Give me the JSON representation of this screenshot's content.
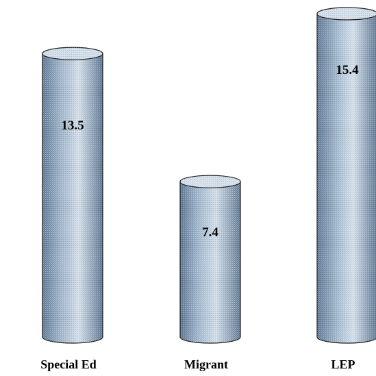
{
  "chart_data": {
    "type": "bar",
    "categories": [
      "Special Ed",
      "Migrant",
      "LEP"
    ],
    "values": [
      13.5,
      7.4,
      15.4
    ],
    "data_labels": [
      "13.5",
      "7.4",
      "15.4"
    ],
    "title": "",
    "xlabel": "",
    "ylabel": "",
    "ylim": [
      0,
      15.4
    ],
    "grid": false,
    "legend": "none",
    "bar_style": "3d-cylinder",
    "bar_color": "#9fb5cb",
    "bar_dark": "#5f7894",
    "bar_light": "#d2deea",
    "outline_color": "#1a1a1a"
  }
}
